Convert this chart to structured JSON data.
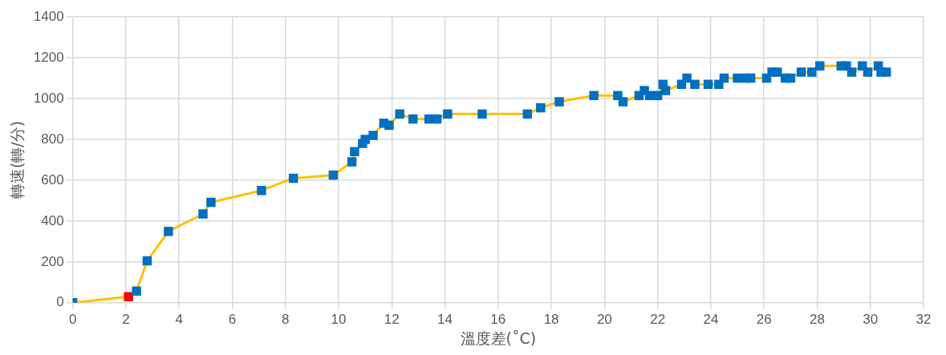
{
  "chart_data": {
    "type": "line",
    "xlabel": "溫度差(˚C)",
    "ylabel": "轉速(轉/分)",
    "xlim": [
      0,
      32
    ],
    "xticks": [
      0,
      2,
      4,
      6,
      8,
      10,
      12,
      14,
      16,
      18,
      20,
      22,
      24,
      26,
      28,
      30,
      32
    ],
    "ylim": [
      0,
      1400
    ],
    "yticks": [
      0,
      200,
      400,
      600,
      800,
      1000,
      1200,
      1400
    ],
    "grid": true,
    "legend": false,
    "marker": "square",
    "line_style": "solid",
    "series": [
      {
        "color": "#ffc000",
        "colors": [
          "#0070c0",
          "#ff0000",
          "#0070c0",
          "#0070c0",
          "#0070c0",
          "#0070c0",
          "#0070c0",
          "#0070c0",
          "#0070c0",
          "#0070c0",
          "#0070c0",
          "#0070c0",
          "#0070c0",
          "#0070c0",
          "#0070c0",
          "#0070c0",
          "#0070c0",
          "#0070c0",
          "#0070c0",
          "#0070c0",
          "#0070c0",
          "#0070c0",
          "#0070c0",
          "#0070c0",
          "#0070c0",
          "#0070c0",
          "#0070c0",
          "#0070c0",
          "#0070c0",
          "#0070c0",
          "#0070c0",
          "#0070c0",
          "#0070c0",
          "#0070c0",
          "#0070c0",
          "#0070c0",
          "#0070c0",
          "#0070c0",
          "#0070c0",
          "#0070c0",
          "#0070c0",
          "#0070c0",
          "#0070c0",
          "#0070c0",
          "#0070c0",
          "#0070c0",
          "#0070c0",
          "#0070c0",
          "#0070c0",
          "#0070c0",
          "#0070c0",
          "#0070c0",
          "#0070c0",
          "#0070c0",
          "#0070c0",
          "#0070c0",
          "#0070c0",
          "#0070c0",
          "#0070c0",
          "#0070c0"
        ],
        "x": [
          0,
          2.1,
          2.4,
          2.8,
          3.6,
          4.9,
          5.2,
          7.1,
          8.3,
          9.8,
          10.5,
          10.6,
          10.9,
          11.0,
          11.3,
          11.7,
          11.9,
          12.3,
          12.8,
          13.4,
          13.7,
          14.1,
          15.4,
          17.1,
          17.6,
          18.3,
          19.6,
          20.5,
          20.7,
          21.3,
          21.5,
          21.7,
          22.0,
          22.2,
          22.3,
          22.9,
          23.1,
          23.4,
          23.9,
          24.3,
          24.5,
          25.0,
          25.3,
          25.5,
          26.1,
          26.3,
          26.5,
          26.8,
          27.0,
          27.4,
          27.8,
          28.1,
          28.9,
          29.1,
          29.3,
          29.7,
          29.9,
          30.3,
          30.4,
          30.6
        ],
        "values": [
          0,
          30,
          57,
          205,
          350,
          435,
          492,
          550,
          610,
          625,
          690,
          740,
          780,
          800,
          820,
          880,
          870,
          925,
          900,
          900,
          900,
          925,
          925,
          925,
          955,
          985,
          1015,
          1015,
          985,
          1015,
          1040,
          1015,
          1015,
          1070,
          1040,
          1070,
          1100,
          1070,
          1070,
          1070,
          1100,
          1100,
          1100,
          1100,
          1100,
          1130,
          1130,
          1100,
          1100,
          1130,
          1130,
          1160,
          1160,
          1160,
          1130,
          1160,
          1130,
          1160,
          1130,
          1130
        ]
      }
    ]
  }
}
